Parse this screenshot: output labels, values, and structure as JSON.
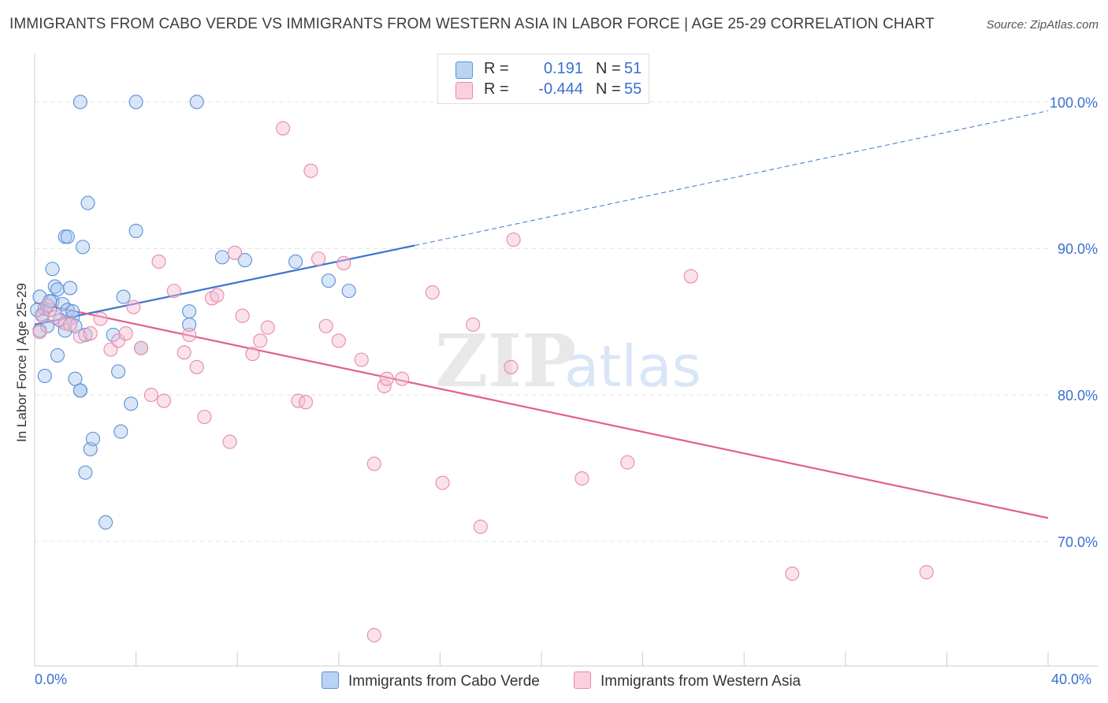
{
  "title": "IMMIGRANTS FROM CABO VERDE VS IMMIGRANTS FROM WESTERN ASIA IN LABOR FORCE | AGE 25-29 CORRELATION CHART",
  "source": "Source: ZipAtlas.com",
  "watermark": {
    "zip": "ZIP",
    "atlas": "atlas"
  },
  "legend_stats": [
    {
      "r_label": "R =",
      "r_value": "0.191",
      "n_label": "N =",
      "n_value": "51"
    },
    {
      "r_label": "R =",
      "r_value": "-0.444",
      "n_label": "N =",
      "n_value": "55"
    }
  ],
  "colors": {
    "blue_fill": "#a8c8f0",
    "blue_stroke": "#5a8fd6",
    "blue_line": "#3a75d0",
    "pink_fill": "#f7bcd0",
    "pink_stroke": "#e68aa8",
    "pink_line": "#e0608c",
    "axis_text": "#3a6fcf",
    "grid": "#e4e4e4"
  },
  "chart_data": {
    "type": "scatter",
    "ylabel": "In Labor Force | Age 25-29",
    "xlim": [
      0,
      40
    ],
    "ylim": [
      61.5,
      103.3
    ],
    "x_tick_labels": [
      {
        "value": 0,
        "label": "0.0%"
      },
      {
        "value": 40,
        "label": "40.0%"
      }
    ],
    "y_tick_labels": [
      {
        "value": 100,
        "label": "100.0%"
      },
      {
        "value": 90,
        "label": "90.0%"
      },
      {
        "value": 80,
        "label": "80.0%"
      },
      {
        "value": 70,
        "label": "70.0%"
      }
    ],
    "x_minor_ticks": [
      0,
      4,
      8,
      12,
      16,
      20,
      24,
      28,
      32,
      36,
      40
    ],
    "grid": true,
    "legend_position": "top-center",
    "series": [
      {
        "name": "Immigrants from Cabo Verde",
        "color": "blue",
        "trend": {
          "x": [
            0,
            15
          ],
          "y": [
            84.8,
            90.2
          ],
          "extended": {
            "x": [
              15,
              40
            ],
            "y": [
              90.2,
              99.4
            ]
          }
        },
        "points": [
          [
            0.2,
            86.7
          ],
          [
            0.3,
            85.5
          ],
          [
            0.2,
            84.4
          ],
          [
            0.4,
            85.9
          ],
          [
            0.5,
            84.7
          ],
          [
            0.6,
            85.8
          ],
          [
            0.7,
            86.4
          ],
          [
            0.8,
            87.4
          ],
          [
            0.9,
            87.2
          ],
          [
            0.7,
            88.6
          ],
          [
            1.0,
            85.1
          ],
          [
            1.1,
            86.2
          ],
          [
            1.2,
            84.4
          ],
          [
            1.3,
            85.8
          ],
          [
            1.4,
            87.3
          ],
          [
            1.5,
            85.3
          ],
          [
            1.2,
            90.8
          ],
          [
            1.3,
            90.8
          ],
          [
            1.9,
            90.1
          ],
          [
            2.1,
            93.1
          ],
          [
            1.8,
            100.0
          ],
          [
            4.0,
            100.0
          ],
          [
            6.4,
            100.0
          ],
          [
            0.4,
            81.3
          ],
          [
            0.9,
            82.7
          ],
          [
            1.6,
            84.7
          ],
          [
            1.6,
            81.1
          ],
          [
            1.8,
            80.3
          ],
          [
            1.8,
            80.3
          ],
          [
            2.0,
            84.1
          ],
          [
            2.2,
            76.3
          ],
          [
            2.3,
            77.0
          ],
          [
            2.0,
            74.7
          ],
          [
            2.8,
            71.3
          ],
          [
            3.1,
            84.1
          ],
          [
            3.3,
            81.6
          ],
          [
            3.5,
            86.7
          ],
          [
            3.4,
            77.5
          ],
          [
            3.8,
            79.4
          ],
          [
            4.0,
            91.2
          ],
          [
            4.2,
            83.2
          ],
          [
            6.1,
            84.8
          ],
          [
            6.1,
            85.7
          ],
          [
            7.4,
            89.4
          ],
          [
            8.3,
            89.2
          ],
          [
            10.3,
            89.1
          ],
          [
            11.6,
            87.8
          ],
          [
            12.4,
            87.1
          ],
          [
            0.6,
            86.4
          ],
          [
            1.5,
            85.7
          ],
          [
            0.1,
            85.8
          ]
        ]
      },
      {
        "name": "Immigrants from Western Asia",
        "color": "pink",
        "trend": {
          "x": [
            0,
            40
          ],
          "y": [
            86.3,
            71.6
          ]
        },
        "points": [
          [
            0.2,
            84.3
          ],
          [
            0.3,
            85.4
          ],
          [
            0.5,
            86.1
          ],
          [
            0.8,
            85.3
          ],
          [
            1.2,
            84.9
          ],
          [
            1.4,
            84.8
          ],
          [
            1.8,
            84.0
          ],
          [
            2.2,
            84.2
          ],
          [
            2.6,
            85.2
          ],
          [
            3.0,
            83.1
          ],
          [
            3.3,
            83.7
          ],
          [
            3.6,
            84.2
          ],
          [
            3.9,
            86.0
          ],
          [
            4.2,
            83.2
          ],
          [
            4.6,
            80.0
          ],
          [
            4.9,
            89.1
          ],
          [
            5.1,
            79.6
          ],
          [
            5.5,
            87.1
          ],
          [
            5.9,
            82.9
          ],
          [
            6.1,
            84.1
          ],
          [
            6.4,
            81.9
          ],
          [
            6.7,
            78.5
          ],
          [
            7.0,
            86.6
          ],
          [
            7.2,
            86.8
          ],
          [
            7.7,
            76.8
          ],
          [
            7.9,
            89.7
          ],
          [
            8.2,
            85.4
          ],
          [
            8.6,
            82.8
          ],
          [
            8.9,
            83.7
          ],
          [
            9.2,
            84.6
          ],
          [
            9.8,
            98.2
          ],
          [
            10.4,
            79.6
          ],
          [
            10.7,
            79.5
          ],
          [
            10.9,
            95.3
          ],
          [
            11.2,
            89.3
          ],
          [
            11.5,
            84.7
          ],
          [
            12.0,
            83.7
          ],
          [
            12.2,
            89.0
          ],
          [
            12.9,
            82.4
          ],
          [
            13.4,
            63.6
          ],
          [
            13.4,
            75.3
          ],
          [
            13.8,
            80.6
          ],
          [
            13.9,
            81.1
          ],
          [
            14.5,
            81.1
          ],
          [
            15.7,
            87.0
          ],
          [
            16.1,
            74.0
          ],
          [
            17.3,
            84.8
          ],
          [
            17.6,
            71.0
          ],
          [
            18.8,
            81.9
          ],
          [
            18.9,
            90.6
          ],
          [
            21.6,
            74.3
          ],
          [
            23.4,
            75.4
          ],
          [
            25.9,
            88.1
          ],
          [
            29.9,
            67.8
          ],
          [
            35.2,
            67.9
          ]
        ]
      }
    ]
  }
}
